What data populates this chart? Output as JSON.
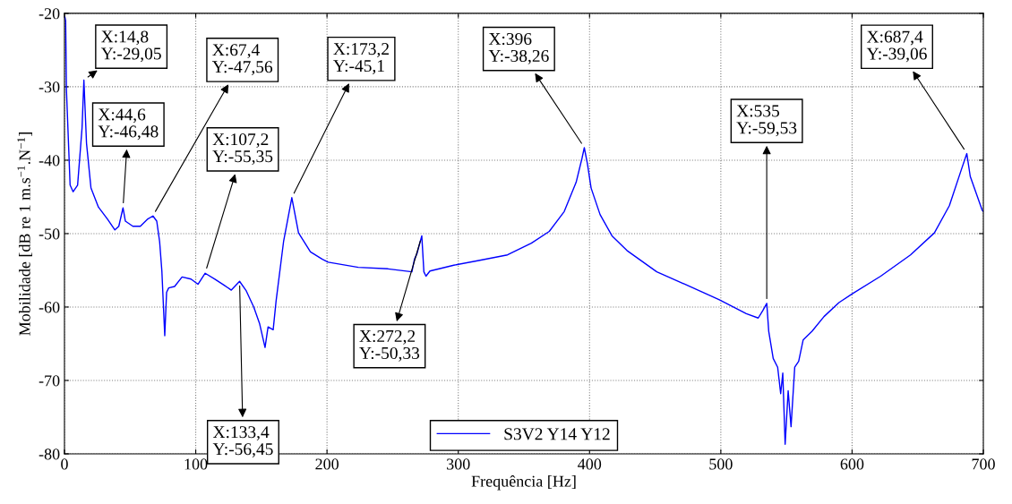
{
  "chart_data": {
    "type": "line",
    "xlabel": "Frequência [Hz]",
    "ylabel": "Mobilidade [dB re 1 m.s$^{−1}$.N$^{−1}$]",
    "xlim": [
      0,
      700
    ],
    "ylim": [
      -80,
      -20
    ],
    "xticks": [
      0,
      100,
      200,
      300,
      400,
      500,
      600,
      700
    ],
    "yticks": [
      -80,
      -70,
      -60,
      -50,
      -40,
      -30,
      -20
    ],
    "grid": true,
    "legend": "bottom",
    "line_style": "solid",
    "marker": "none",
    "series": [
      {
        "name": "S3V2 Y14 Y12",
        "color": "#0000ff",
        "x": [
          0.3,
          0.9,
          1.5,
          4.3,
          6.6,
          10.0,
          13.4,
          14.8,
          16.8,
          20.2,
          25.9,
          32.7,
          38.4,
          41.4,
          44.6,
          46.4,
          52.1,
          57.8,
          63.5,
          67.4,
          70.3,
          72.5,
          74.2,
          76.4,
          77.8,
          79.4,
          83.9,
          89.6,
          96.4,
          101.7,
          107.2,
          114.6,
          121.4,
          127.1,
          133.4,
          138.5,
          144.2,
          148.7,
          152.8,
          155.1,
          159.0,
          161.2,
          166.9,
          173.2,
          178.3,
          187.4,
          196.5,
          200.9,
          223.8,
          246.5,
          264.7,
          266.6,
          268.6,
          272.2,
          273.8,
          275.4,
          278.4,
          296.6,
          314.7,
          337.5,
          355.7,
          369.3,
          380.7,
          389.8,
          394.3,
          396.0,
          398.4,
          401.2,
          408.0,
          417.1,
          428.5,
          451.2,
          474.0,
          498.9,
          519.4,
          528.5,
          531.9,
          535.0,
          536.5,
          539.9,
          543.3,
          545.6,
          547.2,
          549.0,
          551.3,
          553.5,
          556.3,
          559.3,
          562.7,
          569.5,
          578.6,
          590.0,
          600.2,
          621.8,
          644.5,
          662.7,
          674.1,
          683.2,
          687.4,
          690.0,
          699.1,
          700
        ],
        "values": [
          -20.5,
          -21.0,
          -30.4,
          -43.4,
          -44.3,
          -43.4,
          -35.6,
          -29.1,
          -37.7,
          -43.8,
          -46.4,
          -48.0,
          -49.5,
          -49.0,
          -46.5,
          -48.3,
          -49.0,
          -49.0,
          -48.0,
          -47.6,
          -48.3,
          -51.1,
          -55.1,
          -63.9,
          -58.0,
          -57.4,
          -57.2,
          -55.9,
          -56.2,
          -56.9,
          -55.4,
          -56.2,
          -57.0,
          -57.7,
          -56.5,
          -57.8,
          -60.0,
          -62.3,
          -65.5,
          -62.7,
          -63.1,
          -59.2,
          -51.1,
          -45.1,
          -49.9,
          -52.5,
          -53.5,
          -53.9,
          -54.6,
          -54.8,
          -55.2,
          -53.5,
          -52.7,
          -50.3,
          -55.2,
          -55.8,
          -55.1,
          -54.3,
          -53.7,
          -52.9,
          -51.3,
          -49.7,
          -47.0,
          -43.0,
          -39.7,
          -38.3,
          -40.5,
          -43.8,
          -47.4,
          -50.3,
          -52.3,
          -55.2,
          -57.0,
          -59.0,
          -60.9,
          -61.5,
          -60.5,
          -59.5,
          -63.3,
          -67.0,
          -68.2,
          -71.8,
          -69.0,
          -78.7,
          -71.4,
          -76.3,
          -68.2,
          -67.4,
          -64.5,
          -63.3,
          -61.3,
          -59.4,
          -58.2,
          -55.8,
          -52.9,
          -49.9,
          -46.2,
          -41.3,
          -39.1,
          -42.2,
          -46.8,
          -47.0
        ]
      }
    ],
    "annotations": [
      {
        "text": "X:14,8\nY:-29,05",
        "x": 14.8,
        "y": -29.05
      },
      {
        "text": "X:44,6\nY:-46,48",
        "x": 44.6,
        "y": -46.48
      },
      {
        "text": "X:67,4\nY:-47,56",
        "x": 67.4,
        "y": -47.56
      },
      {
        "text": "X:107,2\nY:-55,35",
        "x": 107.2,
        "y": -55.35
      },
      {
        "text": "X:133,4\nY:-56,45",
        "x": 133.4,
        "y": -56.45
      },
      {
        "text": "X:173,2\nY:-45,1",
        "x": 173.2,
        "y": -45.1
      },
      {
        "text": "X:272,2\nY:-50,33",
        "x": 272.2,
        "y": -50.33
      },
      {
        "text": "X:396\nY:-38,26",
        "x": 396,
        "y": -38.26
      },
      {
        "text": "X:535\nY:-59,53",
        "x": 535,
        "y": -59.53
      },
      {
        "text": "X:687,4\nY:-39,06",
        "x": 687.4,
        "y": -39.06
      }
    ]
  }
}
